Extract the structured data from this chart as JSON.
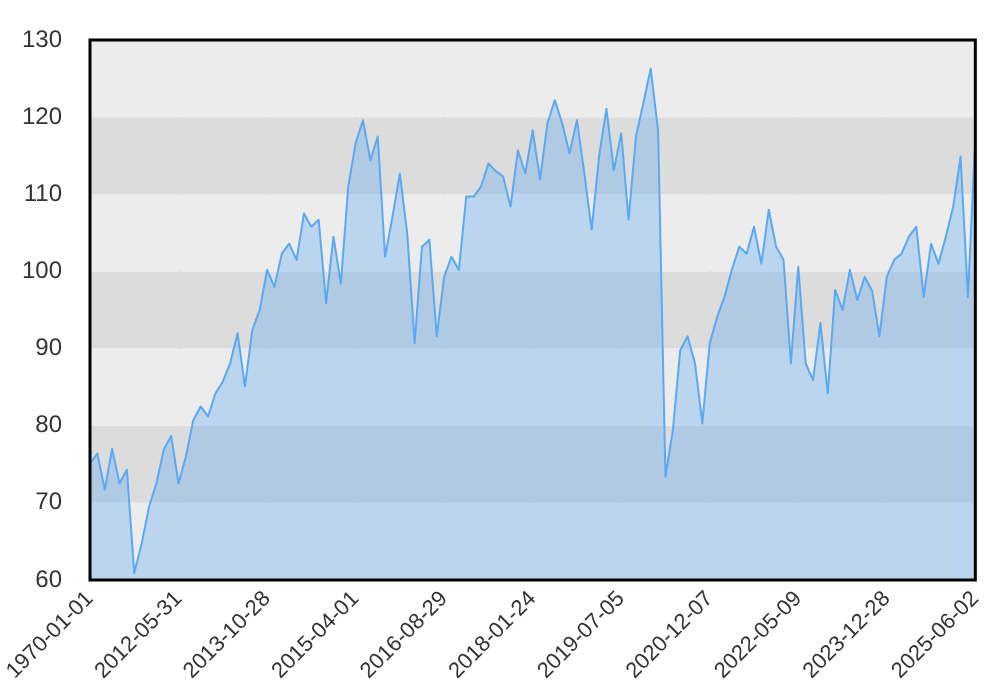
{
  "chart_data": {
    "type": "area",
    "color": "#5aa9f2",
    "categories": [
      "1970-01-01",
      null,
      null,
      null,
      null,
      null,
      null,
      null,
      null,
      null,
      null,
      null,
      "2012-05-31",
      null,
      null,
      null,
      null,
      null,
      null,
      null,
      null,
      null,
      null,
      null,
      "2013-10-28",
      null,
      null,
      null,
      null,
      null,
      null,
      null,
      null,
      null,
      null,
      null,
      "2015-04-01",
      null,
      null,
      null,
      null,
      null,
      null,
      null,
      null,
      null,
      null,
      null,
      "2016-08-29",
      null,
      null,
      null,
      null,
      null,
      null,
      null,
      null,
      null,
      null,
      null,
      "2018-01-24",
      null,
      null,
      null,
      null,
      null,
      null,
      null,
      null,
      null,
      null,
      null,
      "2019-07-05",
      null,
      null,
      null,
      null,
      null,
      null,
      null,
      null,
      null,
      null,
      null,
      "2020-12-07",
      null,
      null,
      null,
      null,
      null,
      null,
      null,
      null,
      null,
      null,
      null,
      "2022-05-09",
      null,
      null,
      null,
      null,
      null,
      null,
      null,
      null,
      null,
      null,
      null,
      "2023-12-28",
      null,
      null,
      null,
      null,
      null,
      null,
      null,
      null,
      null,
      null,
      null,
      "2025-06-02"
    ],
    "values": [
      75.1,
      76.4,
      71.7,
      77.0,
      72.5,
      74.3,
      60.9,
      64.7,
      69.5,
      72.5,
      76.9,
      78.7,
      72.5,
      76.0,
      80.7,
      82.5,
      81.2,
      84.2,
      85.7,
      88.1,
      92.0,
      85.1,
      92.4,
      95.0,
      100.2,
      98.0,
      102.3,
      103.6,
      101.5,
      107.5,
      105.8,
      106.7,
      95.9,
      104.5,
      98.4,
      111.0,
      116.6,
      119.6,
      114.4,
      117.5,
      101.9,
      107.1,
      112.7,
      104.9,
      90.7,
      103.2,
      104.1,
      91.6,
      99.3,
      101.9,
      100.2,
      109.7,
      109.7,
      111.0,
      114.0,
      113.0,
      112.3,
      108.4,
      115.7,
      112.7,
      118.3,
      111.9,
      119.2,
      122.2,
      119.2,
      115.3,
      119.6,
      112.7,
      105.4,
      114.9,
      121.1,
      113.1,
      117.9,
      106.7,
      117.5,
      121.8,
      126.3,
      118.3,
      73.4,
      79.4,
      89.8,
      91.6,
      88.1,
      80.3,
      90.7,
      94.1,
      96.7,
      100.2,
      103.2,
      102.3,
      105.8,
      101.0,
      108.0,
      103.2,
      101.5,
      88.1,
      100.6,
      88.1,
      85.9,
      93.3,
      84.2,
      97.6,
      95.0,
      100.2,
      96.3,
      99.3,
      97.5,
      91.6,
      99.3,
      101.5,
      102.3,
      104.5,
      105.8,
      96.7,
      103.6,
      101.0,
      104.5,
      108.4,
      114.9,
      96.7,
      117.5
    ],
    "ylim": [
      60,
      130
    ],
    "yticks": [
      60,
      70,
      80,
      90,
      100,
      110,
      120,
      130
    ],
    "grid": true,
    "legend": false,
    "marker": "none",
    "line_style": "solid"
  }
}
